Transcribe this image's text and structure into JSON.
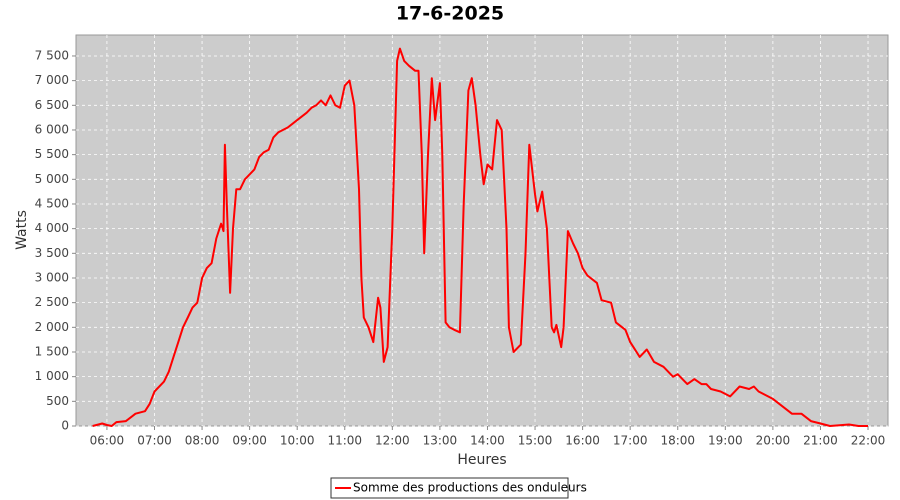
{
  "chart_data": {
    "type": "line",
    "title": "17-6-2025",
    "x_label": "Heures",
    "y_label": "Watts",
    "xlim": [
      5.35,
      22.42
    ],
    "ylim": [
      0,
      7925
    ],
    "xticks": [
      {
        "value": 6,
        "label": "06:00"
      },
      {
        "value": 7,
        "label": "07:00"
      },
      {
        "value": 8,
        "label": "08:00"
      },
      {
        "value": 9,
        "label": "09:00"
      },
      {
        "value": 10,
        "label": "10:00"
      },
      {
        "value": 11,
        "label": "11:00"
      },
      {
        "value": 12,
        "label": "12:00"
      },
      {
        "value": 13,
        "label": "13:00"
      },
      {
        "value": 14,
        "label": "14:00"
      },
      {
        "value": 15,
        "label": "15:00"
      },
      {
        "value": 16,
        "label": "16:00"
      },
      {
        "value": 17,
        "label": "17:00"
      },
      {
        "value": 18,
        "label": "18:00"
      },
      {
        "value": 19,
        "label": "19:00"
      },
      {
        "value": 20,
        "label": "20:00"
      },
      {
        "value": 21,
        "label": "21:00"
      },
      {
        "value": 22,
        "label": "22:00"
      }
    ],
    "yticks": [
      0,
      500,
      {
        "value": 1000,
        "label": "1 000"
      },
      {
        "value": 1500,
        "label": "1 500"
      },
      {
        "value": 2000,
        "label": "2 000"
      },
      {
        "value": 2500,
        "label": "2 500"
      },
      {
        "value": 3000,
        "label": "3 000"
      },
      {
        "value": 3500,
        "label": "3 500"
      },
      {
        "value": 4000,
        "label": "4 000"
      },
      {
        "value": 4500,
        "label": "4 500"
      },
      {
        "value": 5000,
        "label": "5 000"
      },
      {
        "value": 5500,
        "label": "5 500"
      },
      {
        "value": 6000,
        "label": "6 000"
      },
      {
        "value": 6500,
        "label": "6 500"
      },
      {
        "value": 7000,
        "label": "7 000"
      },
      {
        "value": 7500,
        "label": "7 500"
      }
    ],
    "grid": true,
    "legend": "bottom",
    "x": [
      5.7,
      5.9,
      6.0,
      6.1,
      6.2,
      6.4,
      6.6,
      6.8,
      6.9,
      7.0,
      7.2,
      7.3,
      7.4,
      7.5,
      7.6,
      7.7,
      7.8,
      7.9,
      8.0,
      8.1,
      8.2,
      8.3,
      8.4,
      8.45,
      8.48,
      8.52,
      8.59,
      8.65,
      8.72,
      8.8,
      8.9,
      9.0,
      9.1,
      9.2,
      9.3,
      9.4,
      9.5,
      9.6,
      9.8,
      10.0,
      10.2,
      10.3,
      10.4,
      10.5,
      10.6,
      10.7,
      10.8,
      10.9,
      11.0,
      11.1,
      11.2,
      11.3,
      11.35,
      11.4,
      11.5,
      11.6,
      11.7,
      11.75,
      11.82,
      11.9,
      12.0,
      12.1,
      12.16,
      12.25,
      12.35,
      12.48,
      12.55,
      12.62,
      12.67,
      12.75,
      12.83,
      12.9,
      13.0,
      13.05,
      13.12,
      13.2,
      13.3,
      13.42,
      13.5,
      13.6,
      13.67,
      13.75,
      13.85,
      13.92,
      14.0,
      14.1,
      14.2,
      14.3,
      14.4,
      14.45,
      14.55,
      14.7,
      14.8,
      14.88,
      15.0,
      15.05,
      15.15,
      15.25,
      15.35,
      15.4,
      15.45,
      15.55,
      15.6,
      15.69,
      15.8,
      15.9,
      16.0,
      16.1,
      16.3,
      16.4,
      16.6,
      16.7,
      16.9,
      17.0,
      17.2,
      17.35,
      17.5,
      17.7,
      17.9,
      18.0,
      18.2,
      18.35,
      18.5,
      18.6,
      18.7,
      18.9,
      19.1,
      19.3,
      19.5,
      19.6,
      19.7,
      20.0,
      20.2,
      20.4,
      20.6,
      20.8,
      21.0,
      21.2,
      21.6,
      21.8,
      22.0
    ],
    "series": [
      {
        "name": "Somme des productions des onduleurs",
        "color": "#ff0000",
        "values": [
          0,
          50,
          20,
          0,
          80,
          100,
          250,
          300,
          450,
          700,
          900,
          1100,
          1400,
          1700,
          2000,
          2200,
          2400,
          2500,
          3000,
          3200,
          3300,
          3800,
          4100,
          3950,
          5700,
          4500,
          2700,
          4000,
          4800,
          4800,
          5000,
          5100,
          5200,
          5450,
          5550,
          5600,
          5850,
          5950,
          6050,
          6200,
          6350,
          6450,
          6500,
          6600,
          6500,
          6700,
          6500,
          6450,
          6900,
          7000,
          6500,
          4800,
          3000,
          2200,
          2000,
          1700,
          2600,
          2400,
          1300,
          1600,
          4000,
          7400,
          7650,
          7400,
          7300,
          7200,
          7200,
          5500,
          3500,
          5500,
          7050,
          6200,
          6950,
          5500,
          2100,
          2000,
          1950,
          1900,
          4500,
          6800,
          7050,
          6500,
          5500,
          4900,
          5300,
          5200,
          6200,
          6000,
          4000,
          2000,
          1500,
          1650,
          3500,
          5700,
          4700,
          4350,
          4750,
          4000,
          2000,
          1900,
          2050,
          1600,
          2000,
          3950,
          3700,
          3500,
          3200,
          3050,
          2900,
          2550,
          2500,
          2100,
          1950,
          1700,
          1400,
          1550,
          1300,
          1200,
          1000,
          1050,
          850,
          950,
          850,
          850,
          750,
          700,
          600,
          800,
          750,
          800,
          700,
          550,
          400,
          250,
          250,
          100,
          50,
          0,
          30,
          0,
          0
        ]
      }
    ]
  }
}
